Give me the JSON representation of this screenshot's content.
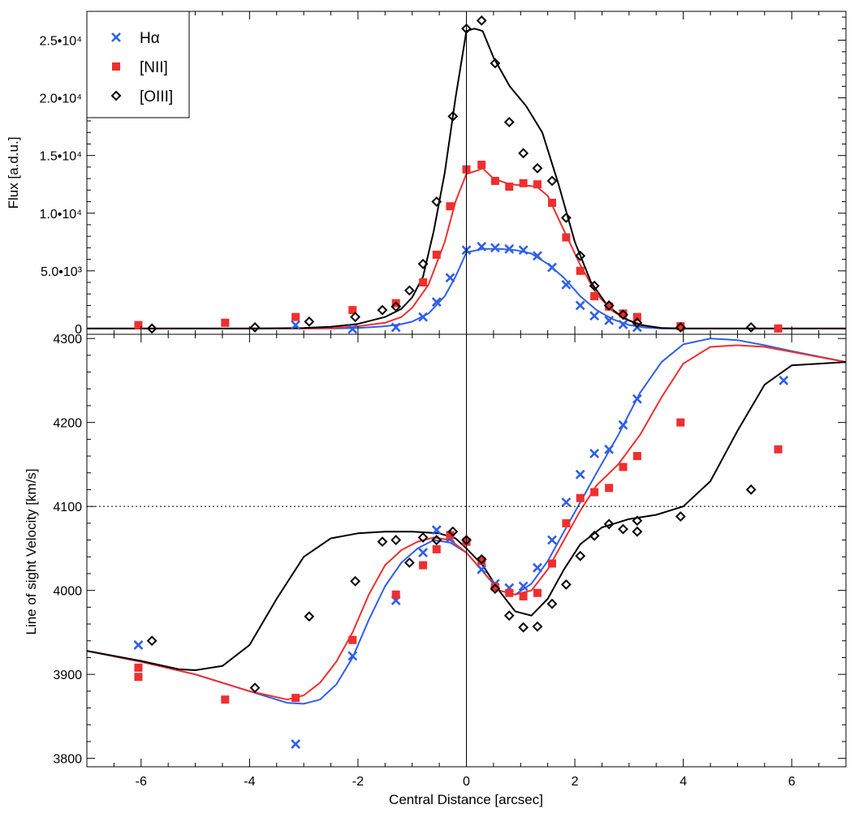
{
  "chart_data": [
    {
      "type": "scatter",
      "panel": "top",
      "title": "",
      "xlabel": "",
      "ylabel": "Flux [a.d.u.]",
      "xlim": [
        -7,
        7
      ],
      "ylim": [
        -500,
        27500
      ],
      "legend": {
        "position": "top-left",
        "entries": [
          {
            "label": "Hα",
            "marker": "x",
            "color": "#2f5fe6"
          },
          {
            "label": "[NII]",
            "marker": "square",
            "color": "#ef2f2f"
          },
          {
            "label": "[OIII]",
            "marker": "diamond",
            "color": "#000000"
          }
        ]
      },
      "yticks": [
        {
          "value": 0,
          "label": "0"
        },
        {
          "value": 5000,
          "label": "5.0•10³"
        },
        {
          "value": 10000,
          "label": "1.0•10⁴"
        },
        {
          "value": 15000,
          "label": "1.5•10⁴"
        },
        {
          "value": 20000,
          "label": "2.0•10⁴"
        },
        {
          "value": 25000,
          "label": "2.5•10⁴"
        }
      ],
      "series": [
        {
          "name": "Hα",
          "marker": "x",
          "color": "#2f5fe6",
          "x": [
            -3.15,
            -2.1,
            -1.3,
            -0.8,
            -0.55,
            -0.3,
            0,
            0.28,
            0.53,
            0.79,
            1.05,
            1.31,
            1.58,
            1.84,
            2.1,
            2.36,
            2.63,
            2.89,
            3.15
          ],
          "y": [
            300,
            -50,
            100,
            1000,
            2300,
            4400,
            6800,
            7100,
            7000,
            6900,
            6800,
            6300,
            5300,
            3800,
            2000,
            1100,
            700,
            350,
            100
          ]
        },
        {
          "name": "[NII]",
          "marker": "square",
          "color": "#ef2f2f",
          "x": [
            -6.05,
            -4.45,
            -3.15,
            -2.1,
            -1.3,
            -0.8,
            -0.55,
            -0.3,
            0,
            0.28,
            0.53,
            0.79,
            1.05,
            1.31,
            1.58,
            1.84,
            2.1,
            2.36,
            2.63,
            2.89,
            3.15,
            3.95,
            5.75
          ],
          "y": [
            300,
            500,
            1000,
            1600,
            2200,
            4000,
            6400,
            10600,
            13800,
            14200,
            12800,
            12300,
            12600,
            12500,
            10900,
            7900,
            5000,
            2800,
            1900,
            1300,
            1000,
            200,
            0
          ]
        },
        {
          "name": "[OIII]",
          "marker": "diamond",
          "color": "#000000",
          "x": [
            -5.8,
            -3.9,
            -2.9,
            -2.05,
            -1.55,
            -1.3,
            -1.05,
            -0.8,
            -0.55,
            -0.25,
            0,
            0.28,
            0.53,
            0.79,
            1.05,
            1.31,
            1.58,
            1.84,
            2.1,
            2.36,
            2.63,
            2.89,
            3.15,
            3.95,
            5.25
          ],
          "y": [
            0,
            100,
            600,
            1000,
            1600,
            1900,
            3300,
            5600,
            11000,
            18400,
            26000,
            26700,
            23000,
            17900,
            15200,
            13900,
            12800,
            9600,
            6300,
            3700,
            2000,
            1200,
            500,
            100,
            100
          ]
        }
      ],
      "model_lines": [
        {
          "name": "Hα model",
          "color": "#2f5fe6",
          "x": [
            -7,
            -4,
            -2.5,
            -2,
            -1.5,
            -1.2,
            -1,
            -0.7,
            -0.4,
            -0.2,
            0,
            0.3,
            0.6,
            0.9,
            1.2,
            1.5,
            1.8,
            2.1,
            2.4,
            2.7,
            3,
            3.3,
            3.6,
            4,
            7
          ],
          "y": [
            0,
            0,
            0,
            50,
            200,
            380,
            600,
            1300,
            2800,
            4500,
            6600,
            6900,
            6900,
            6800,
            6500,
            5600,
            4400,
            2800,
            1600,
            800,
            300,
            80,
            0,
            0,
            0
          ]
        },
        {
          "name": "[NII] model",
          "color": "#ef2f2f",
          "x": [
            -7,
            -4,
            -3,
            -2.5,
            -2,
            -1.5,
            -1.2,
            -1,
            -0.7,
            -0.4,
            -0.2,
            0,
            0.2,
            0.3,
            0.5,
            0.8,
            1.1,
            1.3,
            1.5,
            1.8,
            2.1,
            2.4,
            2.7,
            3,
            3.3,
            3.6,
            4,
            7
          ],
          "y": [
            0,
            0,
            0,
            30,
            200,
            500,
            1000,
            1800,
            3800,
            7500,
            11000,
            13400,
            13700,
            13900,
            13000,
            12500,
            12400,
            12300,
            11500,
            8500,
            5500,
            3000,
            1500,
            700,
            250,
            50,
            0,
            0
          ]
        },
        {
          "name": "[OIII] model",
          "color": "#000000",
          "x": [
            -7,
            -4,
            -3,
            -2.5,
            -2,
            -1.5,
            -1.2,
            -1,
            -0.8,
            -0.6,
            -0.4,
            -0.2,
            0,
            0.15,
            0.3,
            0.5,
            0.8,
            1.1,
            1.4,
            1.7,
            2,
            2.3,
            2.6,
            2.9,
            3.2,
            3.6,
            4,
            7
          ],
          "y": [
            0,
            0,
            50,
            150,
            400,
            1000,
            1700,
            2700,
            4500,
            8500,
            13500,
            20000,
            25800,
            26000,
            25800,
            23500,
            21000,
            19300,
            17000,
            12500,
            7500,
            4000,
            2000,
            900,
            300,
            50,
            0,
            0
          ]
        }
      ]
    },
    {
      "type": "scatter",
      "panel": "bottom",
      "title": "",
      "xlabel": "Central Distance [arcsec]",
      "ylabel": "Line of sight Velocity [km/s]",
      "xlim": [
        -7,
        7
      ],
      "ylim": [
        3790,
        4305
      ],
      "reference_line": {
        "y": 4100,
        "style": "dotted"
      },
      "yticks": [
        {
          "value": 3800,
          "label": "3800"
        },
        {
          "value": 3900,
          "label": "3900"
        },
        {
          "value": 4000,
          "label": "4000"
        },
        {
          "value": 4100,
          "label": "4100"
        },
        {
          "value": 4200,
          "label": "4200"
        },
        {
          "value": 4300,
          "label": "4300"
        }
      ],
      "xticks": [
        {
          "value": -6,
          "label": "-6"
        },
        {
          "value": -4,
          "label": "-4"
        },
        {
          "value": -2,
          "label": "-2"
        },
        {
          "value": 0,
          "label": "0"
        },
        {
          "value": 2,
          "label": "2"
        },
        {
          "value": 4,
          "label": "4"
        },
        {
          "value": 6,
          "label": "6"
        }
      ],
      "series": [
        {
          "name": "Hα",
          "marker": "x",
          "color": "#2f5fe6",
          "x": [
            -6.05,
            -3.15,
            -2.1,
            -1.3,
            -0.8,
            -0.55,
            -0.3,
            0.28,
            0.53,
            0.79,
            1.05,
            1.31,
            1.58,
            1.84,
            2.1,
            2.36,
            2.63,
            2.89,
            3.15,
            5.85
          ],
          "y": [
            3935,
            3817,
            3922,
            3988,
            4045,
            4072,
            4062,
            4025,
            4008,
            4003,
            4005,
            4027,
            4060,
            4105,
            4138,
            4163,
            4168,
            4197,
            4228,
            4250
          ]
        },
        {
          "name": "[NII]",
          "marker": "square",
          "color": "#ef2f2f",
          "x": [
            -6.05,
            -6.05,
            -4.45,
            -3.15,
            -2.1,
            -1.3,
            -0.8,
            -0.55,
            -0.3,
            0,
            0.28,
            0.53,
            0.79,
            1.05,
            1.31,
            1.58,
            1.84,
            2.1,
            2.36,
            2.63,
            2.89,
            3.15,
            3.95,
            5.75
          ],
          "y": [
            3908,
            3897,
            3870,
            3872,
            3941,
            3995,
            4030,
            4049,
            4066,
            4058,
            4035,
            4004,
            3997,
            3993,
            3997,
            4032,
            4080,
            4110,
            4117,
            4122,
            4147,
            4160,
            4200,
            4168
          ]
        },
        {
          "name": "[OIII]",
          "marker": "diamond",
          "color": "#000000",
          "x": [
            -5.8,
            -3.9,
            -2.9,
            -2.05,
            -1.55,
            -1.3,
            -1.05,
            -0.8,
            -0.55,
            -0.25,
            0,
            0.28,
            0.53,
            0.79,
            1.05,
            1.31,
            1.58,
            1.84,
            2.1,
            2.36,
            2.63,
            2.89,
            3.15,
            3.15,
            3.95,
            5.25
          ],
          "y": [
            3940,
            3884,
            3969,
            4011,
            4058,
            4060,
            4033,
            4063,
            4060,
            4070,
            4060,
            4037,
            4002,
            3970,
            3956,
            3957,
            3984,
            4007,
            4041,
            4065,
            4079,
            4073,
            4070,
            4083,
            4088,
            4120
          ]
        }
      ],
      "model_lines": [
        {
          "name": "Hα model",
          "color": "#2f5fe6",
          "x": [
            -7,
            -6,
            -5,
            -4,
            -3.3,
            -3,
            -2.7,
            -2.4,
            -2.1,
            -1.8,
            -1.5,
            -1.2,
            -0.9,
            -0.6,
            -0.3,
            0,
            0.3,
            0.6,
            0.9,
            1.2,
            1.5,
            1.8,
            2.1,
            2.4,
            2.8,
            3.2,
            3.6,
            4,
            4.5,
            5,
            5.5,
            6,
            7
          ],
          "y": [
            3928,
            3915,
            3900,
            3880,
            3866,
            3865,
            3870,
            3888,
            3920,
            3965,
            4005,
            4033,
            4050,
            4060,
            4057,
            4045,
            4023,
            4000,
            3995,
            4008,
            4035,
            4070,
            4105,
            4140,
            4185,
            4235,
            4272,
            4293,
            4300,
            4298,
            4292,
            4285,
            4272
          ]
        },
        {
          "name": "[NII] model",
          "color": "#ef2f2f",
          "x": [
            -7,
            -6,
            -5,
            -4,
            -3.3,
            -3,
            -2.7,
            -2.4,
            -2.1,
            -1.8,
            -1.5,
            -1.2,
            -0.9,
            -0.6,
            -0.3,
            0,
            0.3,
            0.6,
            0.9,
            1.2,
            1.5,
            1.8,
            2.1,
            2.4,
            2.8,
            3.2,
            3.6,
            4,
            4.5,
            5,
            5.5,
            6,
            7
          ],
          "y": [
            3928,
            3915,
            3900,
            3880,
            3870,
            3875,
            3890,
            3915,
            3950,
            3995,
            4030,
            4048,
            4058,
            4063,
            4060,
            4045,
            4023,
            4000,
            3995,
            4000,
            4025,
            4060,
            4095,
            4125,
            4150,
            4185,
            4230,
            4270,
            4290,
            4292,
            4290,
            4284,
            4272
          ]
        },
        {
          "name": "[OIII] model",
          "color": "#000000",
          "x": [
            -7,
            -6,
            -5.3,
            -5,
            -4.5,
            -4,
            -3.5,
            -3,
            -2.5,
            -2,
            -1.5,
            -1,
            -0.5,
            -0.2,
            0,
            0.3,
            0.6,
            0.9,
            1.2,
            1.5,
            1.8,
            2.1,
            2.5,
            3,
            3.5,
            4,
            4.5,
            5,
            5.5,
            6,
            7
          ],
          "y": [
            3928,
            3916,
            3906,
            3905,
            3910,
            3935,
            3990,
            4040,
            4062,
            4068,
            4070,
            4070,
            4068,
            4062,
            4050,
            4030,
            4000,
            3975,
            3970,
            3990,
            4025,
            4055,
            4075,
            4085,
            4090,
            4100,
            4130,
            4190,
            4245,
            4268,
            4272
          ]
        }
      ]
    }
  ]
}
